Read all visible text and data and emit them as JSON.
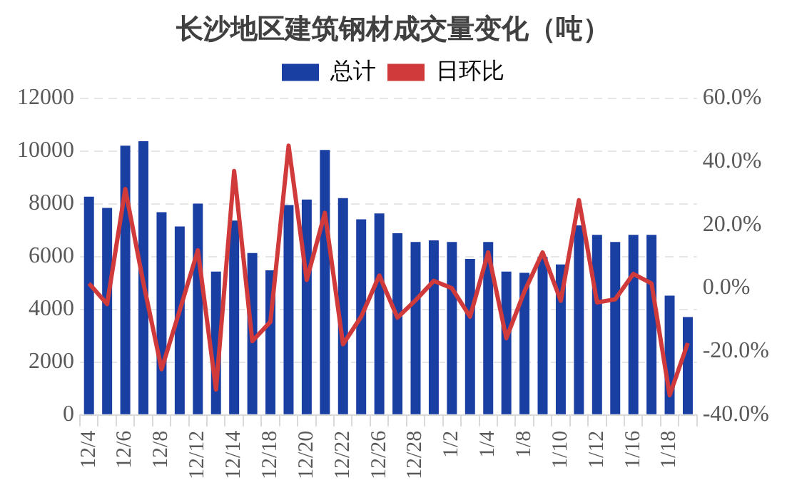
{
  "chart_data": {
    "type": "bar",
    "title": "长沙地区建筑钢材成交量变化（吨）",
    "categories": [
      "12/4",
      null,
      "12/6",
      null,
      "12/8",
      null,
      "12/12",
      null,
      "12/14",
      null,
      "12/18",
      null,
      "12/20",
      null,
      "12/22",
      null,
      "12/26",
      null,
      "12/28",
      null,
      "1/2",
      null,
      "1/4",
      null,
      "1/8",
      null,
      "1/10",
      null,
      "1/12",
      null,
      "1/16",
      null,
      "1/18",
      null
    ],
    "series": [
      {
        "name": "总计",
        "color": "#1a3fa3",
        "values": [
          8270,
          7840,
          10200,
          10370,
          7680,
          7140,
          8000,
          5430,
          7360,
          6130,
          5480,
          7950,
          8160,
          10040,
          8210,
          7410,
          7630,
          6880,
          6550,
          6610,
          6550,
          5910,
          6550,
          5430,
          5380,
          5980,
          5700,
          7180,
          6820,
          6550,
          6820,
          6820,
          4520,
          3710
        ]
      },
      {
        "name": "日环比",
        "type": "line",
        "axis": "y2",
        "color": "#d03a3a",
        "values": [
          1.5,
          -5,
          31.3,
          1.6,
          -25.6,
          -7,
          12,
          -32,
          37,
          -16.7,
          -10.6,
          45,
          2.6,
          23.8,
          -17.7,
          -9,
          4,
          -9.3,
          -3.8,
          2.3,
          0,
          -9,
          11.3,
          -15.8,
          -1,
          11.3,
          -4,
          27.8,
          -4.5,
          -3.5,
          4.5,
          1.5,
          -33.8,
          -17.3
        ]
      }
    ],
    "ylim": [
      0,
      12000
    ],
    "yticks": [
      0,
      2000,
      4000,
      6000,
      8000,
      10000,
      12000
    ],
    "y2lim": [
      -40,
      60
    ],
    "y2ticks": [
      {
        "value": -40,
        "label": "-40.0%"
      },
      {
        "value": -20,
        "label": "-20.0%"
      },
      {
        "value": 0,
        "label": "0.0%"
      },
      {
        "value": 20,
        "label": "20.0%"
      },
      {
        "value": 40,
        "label": "40.0%"
      },
      {
        "value": 60,
        "label": "60.0%"
      }
    ],
    "grid": "y",
    "legend": "top",
    "marker": "none",
    "line_style": "solid"
  }
}
